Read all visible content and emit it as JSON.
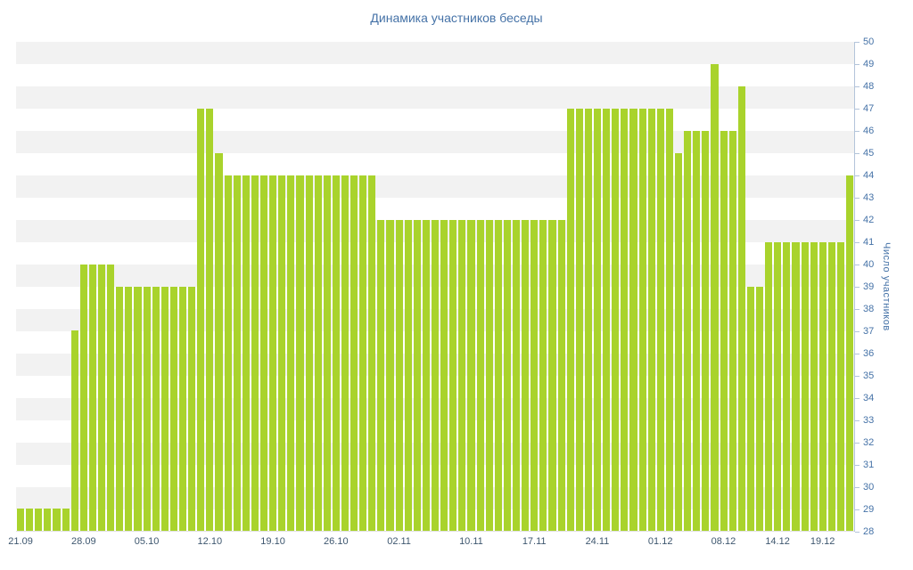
{
  "title": "Динамика участников беседы",
  "chart_data": {
    "type": "bar",
    "title": "Динамика участников беседы",
    "xlabel": "",
    "ylabel": "Число участников",
    "ylim": [
      28,
      50
    ],
    "y_tick_step": 1,
    "legend": "none",
    "grid": "alternating-horizontal-bands",
    "values": [
      29,
      29,
      29,
      29,
      29,
      29,
      37,
      40,
      40,
      40,
      40,
      39,
      39,
      39,
      39,
      39,
      39,
      39,
      39,
      39,
      47,
      47,
      45,
      44,
      44,
      44,
      44,
      44,
      44,
      44,
      44,
      44,
      44,
      44,
      44,
      44,
      44,
      44,
      44,
      44,
      42,
      42,
      42,
      42,
      42,
      42,
      42,
      42,
      42,
      42,
      42,
      42,
      42,
      42,
      42,
      42,
      42,
      42,
      42,
      42,
      42,
      47,
      47,
      47,
      47,
      47,
      47,
      47,
      47,
      47,
      47,
      47,
      47,
      45,
      46,
      46,
      46,
      49,
      46,
      46,
      48,
      39,
      39,
      41,
      41,
      41,
      41,
      41,
      41,
      41,
      41,
      41,
      44
    ],
    "x_ticks": [
      {
        "index": 0,
        "label": "21.09"
      },
      {
        "index": 7,
        "label": "28.09"
      },
      {
        "index": 14,
        "label": "05.10"
      },
      {
        "index": 21,
        "label": "12.10"
      },
      {
        "index": 28,
        "label": "19.10"
      },
      {
        "index": 35,
        "label": "26.10"
      },
      {
        "index": 42,
        "label": "02.11"
      },
      {
        "index": 50,
        "label": "10.11"
      },
      {
        "index": 57,
        "label": "17.11"
      },
      {
        "index": 64,
        "label": "24.11"
      },
      {
        "index": 71,
        "label": "01.12"
      },
      {
        "index": 78,
        "label": "08.12"
      },
      {
        "index": 84,
        "label": "14.12"
      },
      {
        "index": 89,
        "label": "19.12"
      }
    ],
    "y_ticks": [
      28,
      29,
      30,
      31,
      32,
      33,
      34,
      35,
      36,
      37,
      38,
      39,
      40,
      41,
      42,
      43,
      44,
      45,
      46,
      47,
      48,
      49,
      50
    ],
    "colors": {
      "bar": "#a9d32c",
      "band": "#f2f2f2",
      "title": "#4572a7",
      "y_labels": "#4572a7",
      "x_labels": "#3e576f",
      "axis_line": "#b3c4da",
      "background": "#ffffff"
    }
  }
}
